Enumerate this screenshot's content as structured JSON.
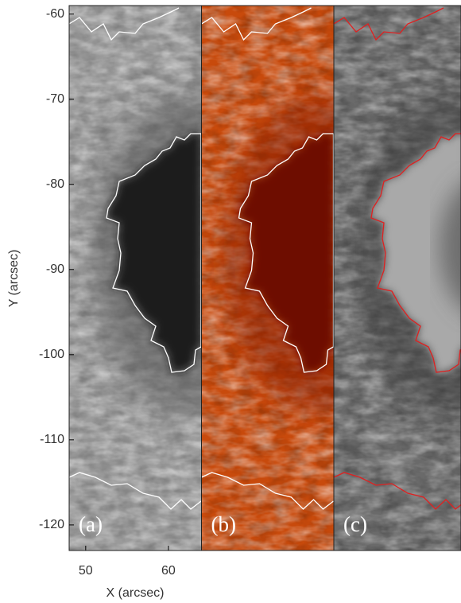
{
  "chart_data": {
    "type": "image",
    "x_label": "X (arcsec)",
    "y_label": "Y (arcsec)",
    "xlim": [
      48,
      64
    ],
    "ylim": [
      -123,
      -59
    ],
    "xticks": [
      50,
      60
    ],
    "yticks": [
      -60,
      -70,
      -80,
      -90,
      -100,
      -110,
      -120
    ],
    "panels": [
      {
        "label": "(a)",
        "contour_color": "#ffffff"
      },
      {
        "label": "(b)",
        "contour_color": "#ffffff"
      },
      {
        "label": "(c)",
        "contour_color": "#e02020"
      }
    ]
  }
}
